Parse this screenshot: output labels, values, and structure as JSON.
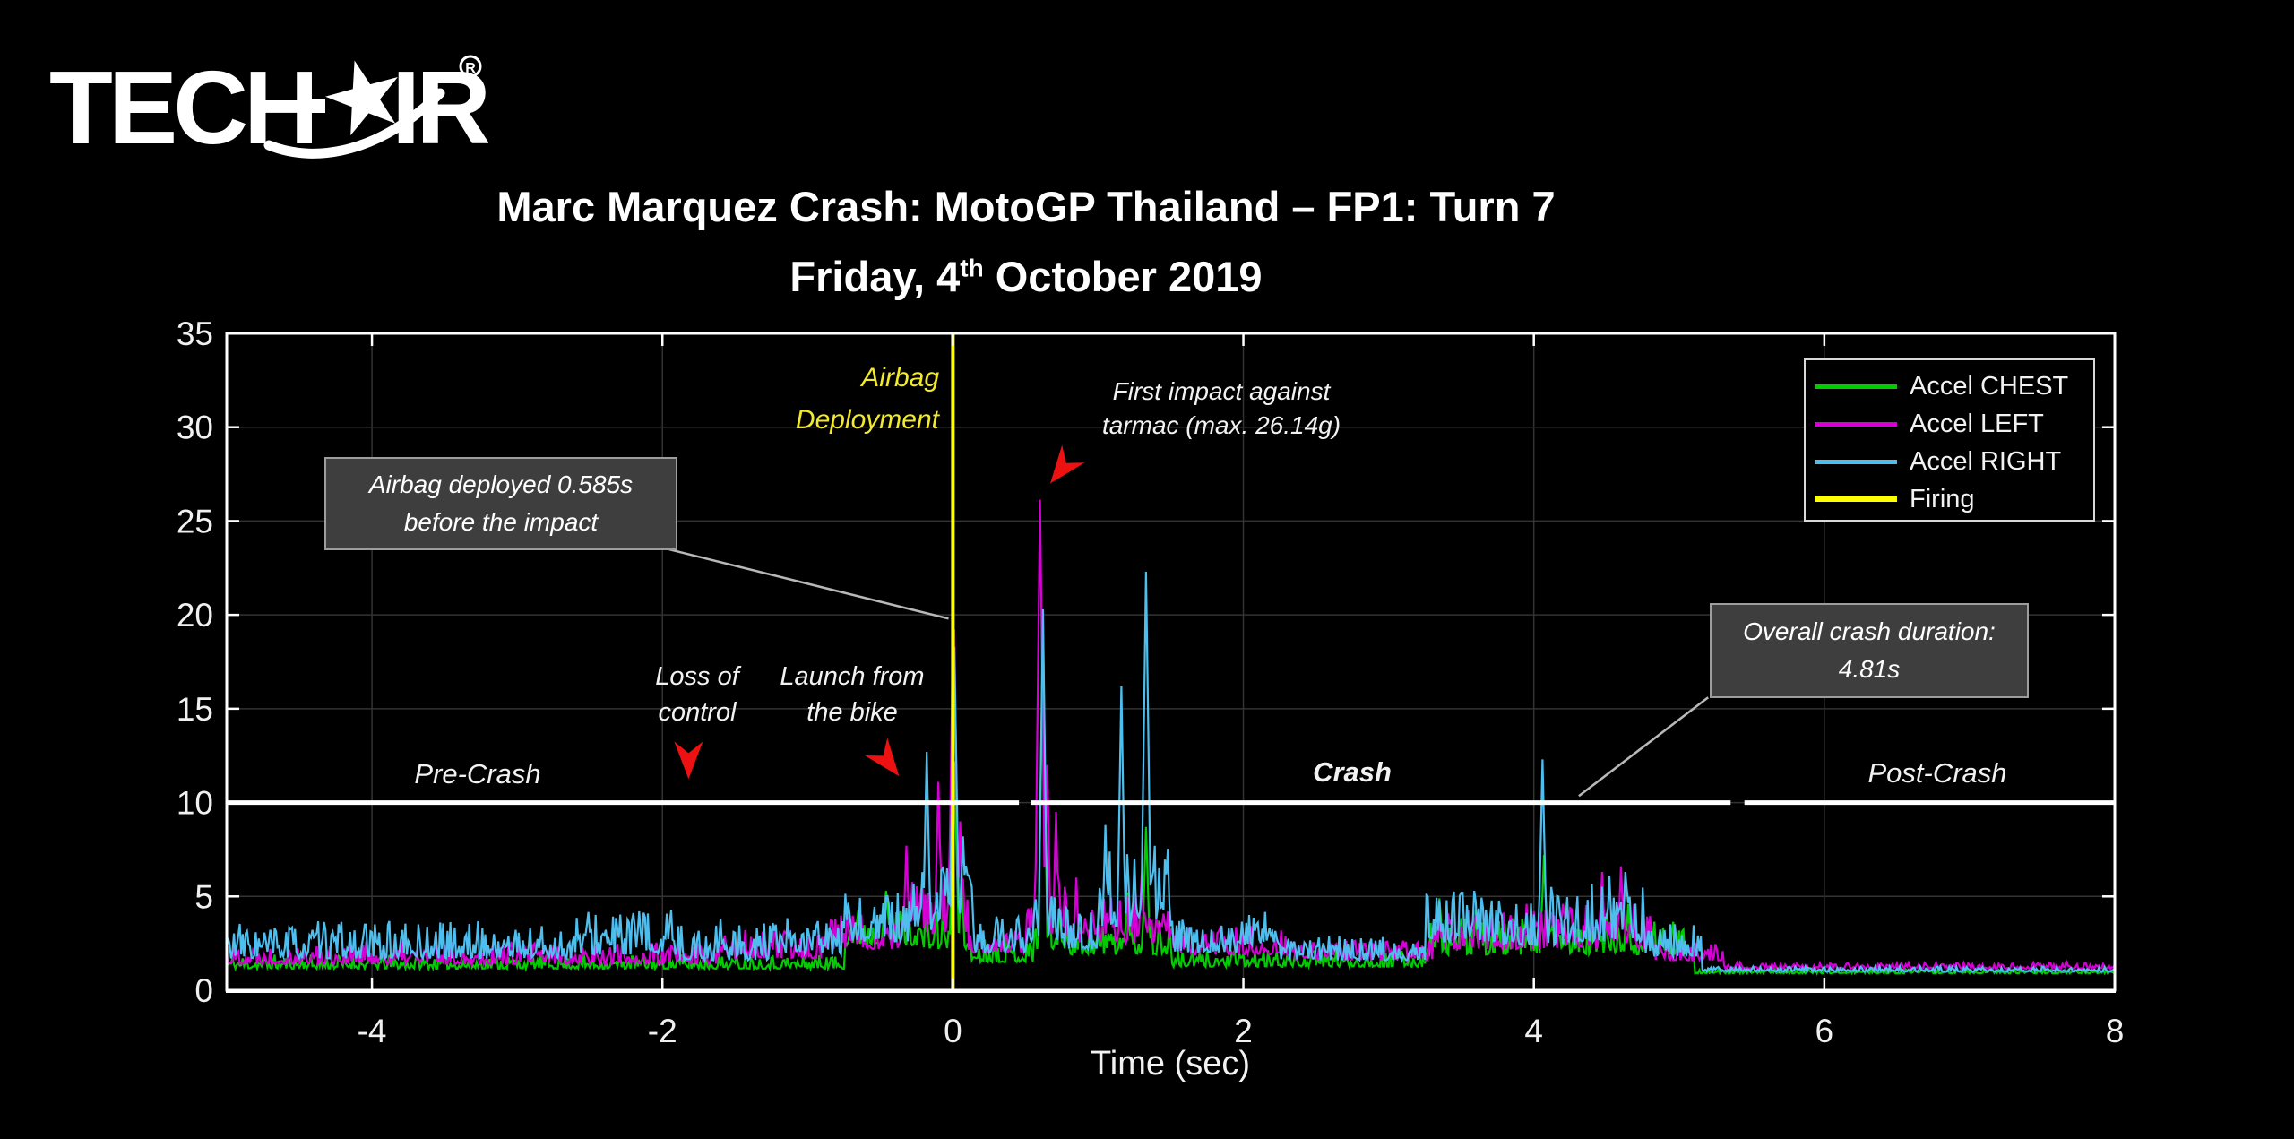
{
  "logo": {
    "text_left": "TECH",
    "hyphen": "-",
    "text_right": "IR",
    "registered": "R"
  },
  "title": {
    "line1": "Marc Marquez Crash: MotoGP Thailand – FP1: Turn 7",
    "line2_prefix": "Friday, 4",
    "line2_sup": "th",
    "line2_suffix": " October 2019"
  },
  "chart_data": {
    "type": "line",
    "xlabel": "Time (sec)",
    "ylabel": "",
    "xlim": [
      -5,
      8
    ],
    "ylim": [
      0,
      35
    ],
    "x_ticks": [
      -4,
      -2,
      0,
      2,
      4,
      6,
      8
    ],
    "y_ticks": [
      0,
      5,
      10,
      15,
      20,
      25,
      30,
      35
    ],
    "grid": true,
    "grid_color": "#333333",
    "axis_color": "#ffffff",
    "background": "#000000",
    "legend": {
      "position": "top-right",
      "items": [
        {
          "label": "Accel CHEST",
          "color": "#00CC00"
        },
        {
          "label": "Accel LEFT",
          "color": "#D500D5"
        },
        {
          "label": "Accel RIGHT",
          "color": "#4DBEEE"
        },
        {
          "label": "Firing",
          "color": "#FFFF00"
        }
      ]
    },
    "series": [
      {
        "name": "Accel CHEST",
        "color": "#00CC00",
        "seed": 11,
        "segments": [
          [
            -5,
            -0.75,
            1.15,
            0.35
          ],
          [
            -0.75,
            -0.25,
            2.4,
            1.0
          ],
          [
            -0.25,
            0.1,
            2.2,
            1.0
          ],
          [
            0.1,
            0.55,
            1.5,
            0.6
          ],
          [
            0.55,
            0.8,
            2.2,
            1.1
          ],
          [
            0.8,
            1.5,
            1.9,
            0.9
          ],
          [
            1.5,
            3.25,
            1.25,
            0.4
          ],
          [
            3.25,
            5.1,
            1.9,
            0.9
          ],
          [
            5.1,
            8.01,
            0.9,
            0.1
          ]
        ],
        "peaks": [
          [
            -0.46,
            5.3,
            0.06
          ],
          [
            -0.36,
            4.2,
            0.04
          ],
          [
            0.01,
            12.2,
            0.04
          ],
          [
            0.06,
            6.5,
            0.03
          ],
          [
            0.62,
            19.6,
            0.035
          ],
          [
            1.2,
            5.2,
            0.03
          ],
          [
            1.33,
            8.7,
            0.035
          ],
          [
            3.35,
            4.9,
            0.035
          ],
          [
            3.6,
            4.3,
            0.03
          ],
          [
            4.07,
            7.2,
            0.035
          ],
          [
            4.5,
            4.1,
            0.03
          ],
          [
            4.65,
            4.6,
            0.03
          ]
        ]
      },
      {
        "name": "Accel LEFT",
        "color": "#D500D5",
        "seed": 22,
        "segments": [
          [
            -5,
            -1.6,
            1.4,
            0.55
          ],
          [
            -1.6,
            -0.9,
            1.7,
            0.7
          ],
          [
            -0.9,
            -0.35,
            2.2,
            1.0
          ],
          [
            -0.35,
            0.1,
            3.0,
            1.4
          ],
          [
            0.1,
            0.5,
            2.0,
            0.6
          ],
          [
            0.5,
            0.78,
            3.0,
            1.5
          ],
          [
            0.78,
            1.05,
            2.5,
            1.1
          ],
          [
            1.05,
            1.5,
            2.5,
            1.2
          ],
          [
            1.5,
            2.3,
            1.9,
            0.7
          ],
          [
            2.3,
            3.3,
            1.6,
            0.5
          ],
          [
            3.3,
            4.8,
            2.2,
            1.1
          ],
          [
            4.8,
            5.3,
            1.6,
            0.6
          ],
          [
            5.3,
            8.01,
            1.15,
            0.15
          ]
        ],
        "peaks": [
          [
            -0.32,
            7.7,
            0.035
          ],
          [
            -0.22,
            5.2,
            0.03
          ],
          [
            -0.1,
            11.1,
            0.035
          ],
          [
            0.005,
            21.9,
            0.04
          ],
          [
            0.05,
            9.0,
            0.03
          ],
          [
            0.6,
            26.14,
            0.04
          ],
          [
            0.65,
            12.0,
            0.03
          ],
          [
            0.71,
            9.5,
            0.03
          ],
          [
            0.85,
            6.0,
            0.03
          ],
          [
            1.15,
            4.8,
            0.03
          ],
          [
            1.3,
            6.2,
            0.03
          ],
          [
            1.85,
            3.0,
            0.05
          ],
          [
            3.55,
            4.2,
            0.03
          ],
          [
            3.95,
            4.6,
            0.03
          ],
          [
            4.2,
            4.6,
            0.03
          ],
          [
            4.47,
            6.3,
            0.035
          ],
          [
            4.6,
            6.6,
            0.035
          ],
          [
            4.75,
            3.5,
            0.03
          ]
        ]
      },
      {
        "name": "Accel RIGHT",
        "color": "#4DBEEE",
        "seed": 33,
        "segments": [
          [
            -5,
            -2.6,
            1.7,
            0.9
          ],
          [
            -2.6,
            -1.9,
            1.9,
            1.1
          ],
          [
            -1.9,
            -1.2,
            1.6,
            0.9
          ],
          [
            -1.2,
            -0.75,
            1.9,
            0.9
          ],
          [
            -0.75,
            -0.3,
            2.6,
            1.2
          ],
          [
            -0.3,
            0.12,
            3.2,
            1.6
          ],
          [
            0.12,
            0.5,
            2.0,
            0.9
          ],
          [
            0.5,
            0.75,
            2.6,
            1.4
          ],
          [
            0.75,
            1.0,
            2.2,
            1.0
          ],
          [
            1.0,
            1.5,
            3.4,
            2.0
          ],
          [
            1.5,
            1.95,
            2.0,
            0.8
          ],
          [
            1.95,
            2.25,
            2.4,
            0.9
          ],
          [
            2.25,
            3.25,
            1.6,
            0.6
          ],
          [
            3.25,
            3.75,
            2.6,
            1.3
          ],
          [
            3.75,
            4.3,
            2.4,
            1.2
          ],
          [
            4.3,
            4.75,
            2.6,
            1.4
          ],
          [
            4.75,
            5.15,
            1.8,
            0.8
          ],
          [
            5.15,
            8.01,
            1.0,
            0.12
          ]
        ],
        "peaks": [
          [
            -2.16,
            4.2,
            0.04
          ],
          [
            -1.6,
            3.8,
            0.03
          ],
          [
            -0.18,
            12.7,
            0.035
          ],
          [
            -0.07,
            6.5,
            0.03
          ],
          [
            0.01,
            18.3,
            0.04
          ],
          [
            0.07,
            8.2,
            0.04
          ],
          [
            0.13,
            5.5,
            0.03
          ],
          [
            0.62,
            20.3,
            0.035
          ],
          [
            0.68,
            5.0,
            0.03
          ],
          [
            1.05,
            8.8,
            0.03
          ],
          [
            1.16,
            16.2,
            0.035
          ],
          [
            1.25,
            7.0,
            0.03
          ],
          [
            1.33,
            22.3,
            0.04
          ],
          [
            1.42,
            6.5,
            0.03
          ],
          [
            2.1,
            3.6,
            0.04
          ],
          [
            3.35,
            4.6,
            0.03
          ],
          [
            3.5,
            5.2,
            0.03
          ],
          [
            4.06,
            12.3,
            0.035
          ],
          [
            4.12,
            5.5,
            0.03
          ],
          [
            4.52,
            6.1,
            0.035
          ],
          [
            4.63,
            6.3,
            0.035
          ],
          [
            4.9,
            3.2,
            0.03
          ]
        ]
      }
    ],
    "firing_line": {
      "t": 0,
      "color": "#FFFF00",
      "label": "Firing"
    },
    "phase_line": {
      "y": 10,
      "color": "#ffffff",
      "segments": [
        [
          -5,
          0.455
        ],
        [
          0.535,
          5.355
        ],
        [
          5.45,
          8
        ]
      ]
    },
    "leader_lines": [
      {
        "from_t": -1.96,
        "from_g": 23.5,
        "to_t": -0.03,
        "to_g": 19.8
      },
      {
        "from_t": 5.2,
        "from_g": 15.6,
        "to_t": 4.31,
        "to_g": 10.35
      }
    ],
    "arrows": [
      {
        "name": "loss-of-control-arrow",
        "tip_t": -1.82,
        "tip_g": 11.25,
        "angle_deg": 90,
        "color": "#EE1111"
      },
      {
        "name": "launch-arrow",
        "tip_t": -0.37,
        "tip_g": 11.4,
        "angle_deg": 52,
        "color": "#EE1111"
      },
      {
        "name": "first-impact-arrow",
        "tip_t": 0.67,
        "tip_g": 27.0,
        "angle_deg": 128,
        "color": "#EE1111"
      }
    ],
    "annotations": {
      "airbag_deployment": {
        "line1": "Airbag",
        "line2": "Deployment",
        "color": "#f2ea2a"
      },
      "first_impact": {
        "line1": "First impact against",
        "line2": "tarmac (max. 26.14g)"
      },
      "airbag_box": {
        "line1": "Airbag deployed 0.585s",
        "line2": "before the impact"
      },
      "duration_box": {
        "line1": "Overall crash duration:",
        "line2": "4.81s"
      },
      "loss_of_control": {
        "line1": "Loss of",
        "line2": "control"
      },
      "launch": {
        "line1": "Launch from",
        "line2": "the bike"
      },
      "phase_pre": "Pre-Crash",
      "phase_crash": "Crash",
      "phase_post": "Post-Crash"
    }
  }
}
